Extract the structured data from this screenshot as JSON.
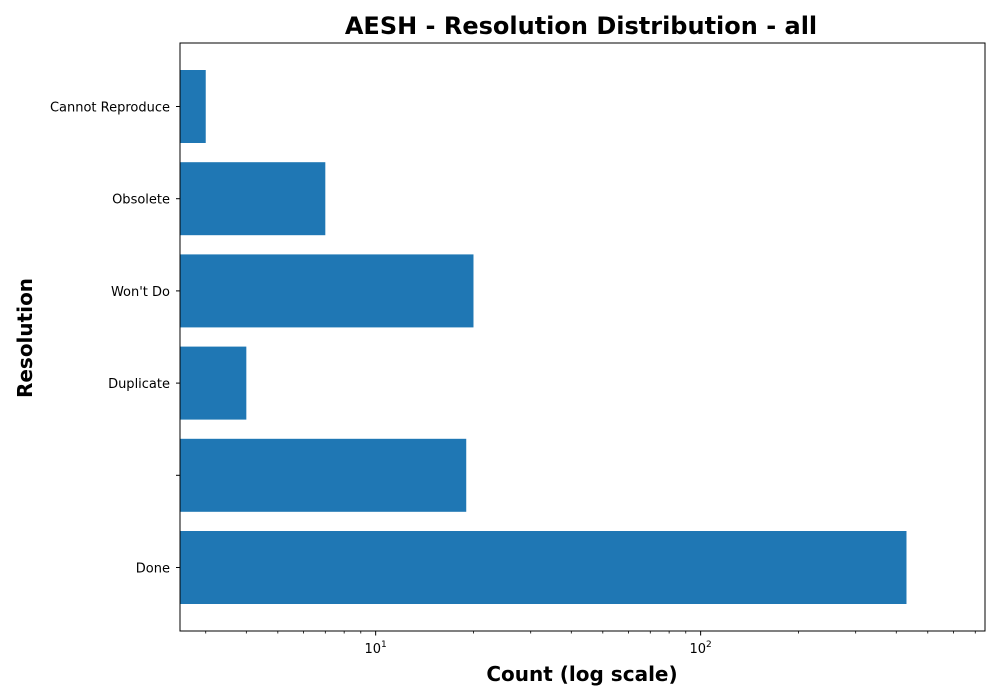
{
  "chart_data": {
    "type": "bar",
    "orientation": "horizontal",
    "title": "AESH - Resolution Distribution - all",
    "xlabel": "Count (log scale)",
    "ylabel": "Resolution",
    "xscale": "log",
    "xlim": [
      2.5,
      750
    ],
    "categories": [
      "Done",
      "",
      "Duplicate",
      "Won't Do",
      "Obsolete",
      "Cannot Reproduce"
    ],
    "values": [
      430,
      19,
      4,
      20,
      7,
      3
    ],
    "x_ticks": [
      {
        "base": "10",
        "exp": "1",
        "value": 10
      },
      {
        "base": "10",
        "exp": "2",
        "value": 100
      }
    ],
    "bar_color": "#1f77b4",
    "grid": false,
    "legend": "none"
  }
}
